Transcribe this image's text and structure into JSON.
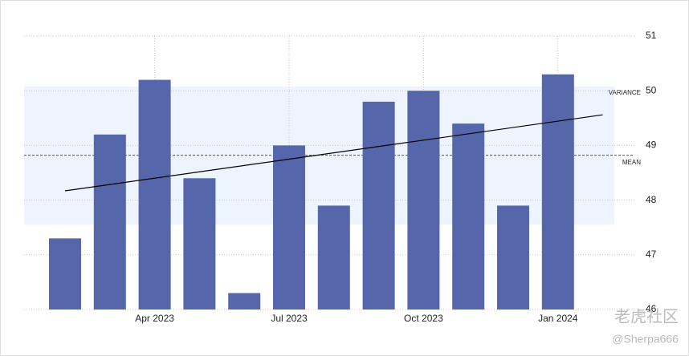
{
  "chart_data": {
    "type": "bar",
    "categories": [
      null,
      null,
      "Apr 2023",
      null,
      null,
      "Jul 2023",
      null,
      null,
      "Oct 2023",
      null,
      null,
      "Jan 2024"
    ],
    "values": [
      47.3,
      49.2,
      50.2,
      48.4,
      46.3,
      49.0,
      47.9,
      49.8,
      50.0,
      49.4,
      47.9,
      50.3
    ],
    "color": "#5567aa",
    "ylim": [
      46,
      51
    ],
    "yticks": [
      46,
      47,
      48,
      49,
      50,
      51
    ],
    "grid": true,
    "trend": {
      "values": [
        48.17,
        49.56
      ],
      "color": "#000000"
    },
    "mean": {
      "label": "MEAN",
      "value": 48.82
    },
    "variance": {
      "label": "VARIANCE",
      "range": [
        47.55,
        50.08
      ],
      "color": "#eef4fd"
    },
    "watermark": {
      "brand": "老虎社区",
      "user": "@Sherpa666"
    }
  }
}
